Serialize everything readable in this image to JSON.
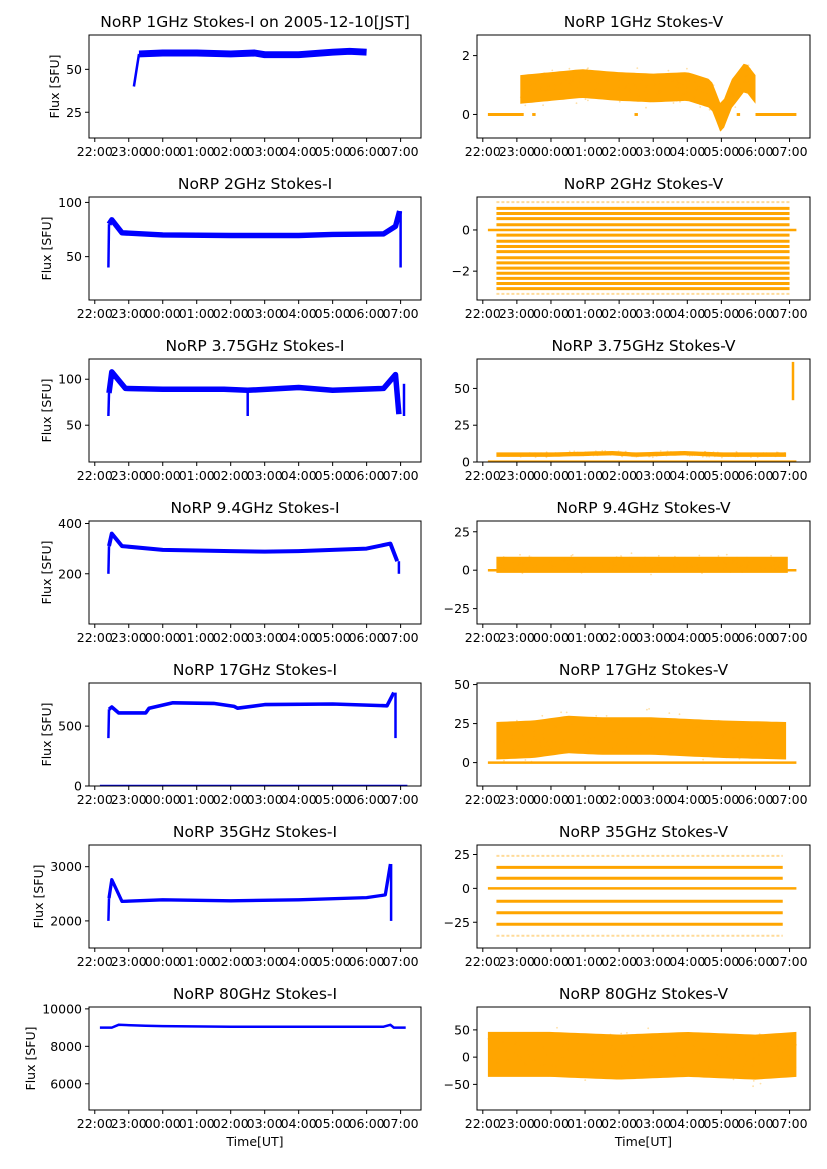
{
  "figure": {
    "time_ticks": [
      "22:00",
      "23:00",
      "00:00",
      "01:00",
      "02:00",
      "03:00",
      "04:00",
      "05:00",
      "06:00",
      "07:00"
    ],
    "x_range_hours": [
      21.83,
      31.6
    ],
    "xlabel": "Time[UT]",
    "ylabel": "Flux [SFU]",
    "colors": {
      "stokes_i": "#0000ff",
      "stokes_v": "#ffa500",
      "axes": "#000000"
    }
  },
  "chart_data": [
    {
      "type": "scatter",
      "title": "NoRP 1GHz Stokes-I on 2005-12-10[JST]",
      "ylabel": "Flux [SFU]",
      "xlabel": "",
      "ylim": [
        10,
        70
      ],
      "yticks": [
        25,
        50
      ],
      "ytick_labels": [
        "25",
        "50"
      ],
      "color": "#0000ff",
      "stokes": "I",
      "series": [
        {
          "name": "ramp",
          "x": [
            23.15,
            23.3
          ],
          "y": [
            40,
            59
          ]
        },
        {
          "name": "level",
          "x": [
            23.3,
            24.0,
            25.0,
            26.0,
            26.7,
            27.0,
            28.0,
            29.0,
            29.5,
            30.0
          ],
          "y": [
            59,
            59.5,
            59.5,
            59,
            59.5,
            58.5,
            58.5,
            60,
            60.5,
            60
          ],
          "spread": 2
        }
      ]
    },
    {
      "type": "scatter",
      "title": "NoRP 1GHz Stokes-V",
      "ylabel": "",
      "xlabel": "",
      "ylim": [
        -0.8,
        2.7
      ],
      "yticks": [
        0,
        2
      ],
      "ytick_labels": [
        "0",
        "2"
      ],
      "color": "#ffa500",
      "stokes": "V",
      "series": [
        {
          "name": "zero-level",
          "x": [
            22.15,
            23.2
          ],
          "y": [
            0,
            0
          ],
          "spread": 0.05
        },
        {
          "name": "zero-level",
          "x": [
            23.45,
            23.55
          ],
          "y": [
            0,
            0
          ],
          "spread": 0.05
        },
        {
          "name": "zero-level",
          "x": [
            26.45,
            26.55
          ],
          "y": [
            0,
            0
          ],
          "spread": 0.05
        },
        {
          "name": "zero-level",
          "x": [
            29.45,
            29.55
          ],
          "y": [
            0,
            0
          ],
          "spread": 0.05
        },
        {
          "name": "zero-level",
          "x": [
            30.0,
            31.2
          ],
          "y": [
            0,
            0
          ],
          "spread": 0.05
        },
        {
          "name": "noise",
          "x": [
            23.1,
            24.0,
            24.9,
            26.0,
            27.0,
            28.0,
            28.7,
            29.0,
            29.3,
            29.7,
            30.0
          ],
          "y": [
            0.85,
            0.95,
            1.05,
            0.95,
            0.9,
            0.95,
            0.7,
            -0.2,
            0.7,
            1.3,
            0.85
          ],
          "spread": 0.65
        }
      ]
    },
    {
      "type": "scatter",
      "title": "NoRP 2GHz Stokes-I",
      "ylabel": "Flux [SFU]",
      "xlabel": "",
      "ylim": [
        10,
        105
      ],
      "yticks": [
        50,
        100
      ],
      "ytick_labels": [
        "50",
        "100"
      ],
      "color": "#0000ff",
      "stokes": "I",
      "series": [
        {
          "name": "start",
          "x": [
            22.4,
            22.42
          ],
          "y": [
            40,
            80
          ]
        },
        {
          "name": "level",
          "x": [
            22.42,
            22.5,
            22.8,
            24.0,
            26.0,
            28.0,
            29.0,
            30.5,
            30.85,
            30.97
          ],
          "y": [
            80,
            84,
            72,
            70,
            69.5,
            69.5,
            70.5,
            71,
            78,
            92
          ],
          "spread": 2.5
        },
        {
          "name": "end-drop",
          "x": [
            31.0,
            31.0
          ],
          "y": [
            92,
            40
          ]
        }
      ]
    },
    {
      "type": "scatter",
      "title": "NoRP 2GHz Stokes-V",
      "ylabel": "",
      "xlabel": "",
      "ylim": [
        -3.4,
        1.6
      ],
      "yticks": [
        -2,
        0
      ],
      "ytick_labels": [
        "−2",
        "0"
      ],
      "color": "#ffa500",
      "stokes": "V",
      "series": [
        {
          "name": "zero-level",
          "x": [
            22.15,
            31.2
          ],
          "y": [
            0,
            0
          ],
          "spread": 0.05
        },
        {
          "name": "quantized-levels",
          "x": [
            22.4,
            31.0
          ],
          "levels": [
            1.35,
            1.05,
            0.8,
            0.55,
            0.25,
            -0.25,
            -0.55,
            -0.8,
            -1.05,
            -1.35,
            -1.6,
            -1.85,
            -2.1,
            -2.35,
            -2.6,
            -2.85,
            -3.1
          ]
        }
      ]
    },
    {
      "type": "scatter",
      "title": "NoRP 3.75GHz Stokes-I",
      "ylabel": "Flux [SFU]",
      "xlabel": "",
      "ylim": [
        10,
        122
      ],
      "yticks": [
        50,
        100
      ],
      "ytick_labels": [
        "50",
        "100"
      ],
      "color": "#0000ff",
      "stokes": "I",
      "series": [
        {
          "name": "start",
          "x": [
            22.4,
            22.42
          ],
          "y": [
            60,
            85
          ]
        },
        {
          "name": "level",
          "x": [
            22.42,
            22.5,
            22.9,
            24.0,
            25.8,
            26.5,
            28.0,
            29.0,
            30.5,
            30.85,
            30.95
          ],
          "y": [
            85,
            108,
            90,
            89,
            89,
            88,
            91,
            88,
            90,
            105,
            62
          ],
          "spread": 3
        },
        {
          "name": "dip",
          "x": [
            26.5,
            26.5
          ],
          "y": [
            88,
            60
          ]
        },
        {
          "name": "late-spike",
          "x": [
            31.1,
            31.1
          ],
          "y": [
            60,
            95
          ]
        }
      ]
    },
    {
      "type": "scatter",
      "title": "NoRP 3.75GHz Stokes-V",
      "ylabel": "",
      "xlabel": "",
      "ylim": [
        0,
        70
      ],
      "yticks": [
        0,
        25,
        50
      ],
      "ytick_labels": [
        "0",
        "25",
        "50"
      ],
      "color": "#ffa500",
      "stokes": "V",
      "series": [
        {
          "name": "zero-level",
          "x": [
            22.15,
            31.2
          ],
          "y": [
            0.3,
            0.3
          ],
          "spread": 0.3
        },
        {
          "name": "noise",
          "x": [
            22.4,
            24.0,
            25.8,
            26.5,
            27.9,
            29.0,
            30.9
          ],
          "y": [
            5,
            5,
            6,
            5,
            6,
            5,
            5
          ],
          "spread": 2
        },
        {
          "name": "late-spike",
          "x": [
            31.1,
            31.1
          ],
          "y": [
            42,
            68
          ]
        }
      ]
    },
    {
      "type": "scatter",
      "title": "NoRP 9.4GHz Stokes-I",
      "ylabel": "Flux [SFU]",
      "xlabel": "",
      "ylim": [
        0,
        410
      ],
      "yticks": [
        200,
        400
      ],
      "ytick_labels": [
        "200",
        "400"
      ],
      "color": "#0000ff",
      "stokes": "I",
      "series": [
        {
          "name": "start",
          "x": [
            22.4,
            22.42
          ],
          "y": [
            200,
            310
          ]
        },
        {
          "name": "level",
          "x": [
            22.42,
            22.5,
            22.8,
            24.0,
            26.0,
            27.0,
            28.0,
            30.0,
            30.7,
            30.9
          ],
          "y": [
            310,
            360,
            310,
            295,
            290,
            288,
            290,
            300,
            320,
            250
          ],
          "spread": 8
        },
        {
          "name": "end-drop",
          "x": [
            30.95,
            30.95
          ],
          "y": [
            250,
            200
          ]
        }
      ]
    },
    {
      "type": "scatter",
      "title": "NoRP 9.4GHz Stokes-V",
      "ylabel": "",
      "xlabel": "",
      "ylim": [
        -35,
        32
      ],
      "yticks": [
        -25,
        0,
        25
      ],
      "ytick_labels": [
        "−25",
        "0",
        "25"
      ],
      "color": "#ffa500",
      "stokes": "V",
      "series": [
        {
          "name": "zero-level",
          "x": [
            22.15,
            31.2
          ],
          "y": [
            0,
            0
          ],
          "spread": 0.4
        },
        {
          "name": "noise",
          "x": [
            22.4,
            26.0,
            30.95
          ],
          "y": [
            3.5,
            3.5,
            3.5
          ],
          "spread": 7
        }
      ]
    },
    {
      "type": "scatter",
      "title": "NoRP 17GHz Stokes-I",
      "ylabel": "Flux [SFU]",
      "xlabel": "",
      "ylim": [
        0,
        860
      ],
      "yticks": [
        0,
        500
      ],
      "ytick_labels": [
        "0",
        "500"
      ],
      "color": "#0000ff",
      "stokes": "I",
      "series": [
        {
          "name": "start",
          "x": [
            22.4,
            22.42
          ],
          "y": [
            400,
            640
          ]
        },
        {
          "name": "level",
          "x": [
            22.42,
            22.5,
            22.7,
            23.5,
            23.6,
            24.3,
            25.5,
            26.1,
            26.2,
            27.0,
            29.0,
            30.6,
            30.8
          ],
          "y": [
            640,
            660,
            610,
            610,
            650,
            695,
            690,
            665,
            650,
            680,
            685,
            670,
            780
          ],
          "spread": 15
        },
        {
          "name": "end-drop",
          "x": [
            30.85,
            30.85
          ],
          "y": [
            780,
            400
          ]
        },
        {
          "name": "zero-level",
          "x": [
            22.15,
            31.2
          ],
          "y": [
            0,
            0
          ],
          "spread": 2
        }
      ]
    },
    {
      "type": "scatter",
      "title": "NoRP 17GHz Stokes-V",
      "ylabel": "",
      "xlabel": "",
      "ylim": [
        -15,
        51
      ],
      "yticks": [
        0,
        25,
        50
      ],
      "ytick_labels": [
        "0",
        "25",
        "50"
      ],
      "color": "#ffa500",
      "stokes": "V",
      "series": [
        {
          "name": "zero-level",
          "x": [
            22.15,
            31.2
          ],
          "y": [
            0,
            0
          ],
          "spread": 0.5
        },
        {
          "name": "noise",
          "x": [
            22.4,
            23.5,
            24.5,
            25.5,
            27.0,
            28.0,
            29.0,
            30.9
          ],
          "y": [
            14,
            15,
            18,
            17,
            17,
            16,
            15,
            14
          ],
          "spread": 16
        }
      ]
    },
    {
      "type": "scatter",
      "title": "NoRP 35GHz Stokes-I",
      "ylabel": "Flux [SFU]",
      "xlabel": "",
      "ylim": [
        1500,
        3400
      ],
      "yticks": [
        2000,
        3000
      ],
      "ytick_labels": [
        "2000",
        "3000"
      ],
      "color": "#0000ff",
      "stokes": "I",
      "series": [
        {
          "name": "start",
          "x": [
            22.4,
            22.42
          ],
          "y": [
            2000,
            2420
          ]
        },
        {
          "name": "level",
          "x": [
            22.42,
            22.5,
            22.8,
            24.0,
            26.0,
            28.0,
            30.0,
            30.55,
            30.7
          ],
          "y": [
            2420,
            2760,
            2360,
            2390,
            2370,
            2390,
            2430,
            2480,
            3050
          ],
          "spread": 30
        },
        {
          "name": "end-drop",
          "x": [
            30.72,
            30.72
          ],
          "y": [
            3050,
            2000
          ]
        }
      ]
    },
    {
      "type": "scatter",
      "title": "NoRP 35GHz Stokes-V",
      "ylabel": "",
      "xlabel": "",
      "ylim": [
        -44,
        32
      ],
      "yticks": [
        -25,
        0,
        25
      ],
      "ytick_labels": [
        "−25",
        "0",
        "25"
      ],
      "color": "#ffa500",
      "stokes": "V",
      "series": [
        {
          "name": "zero-level",
          "x": [
            22.15,
            31.2
          ],
          "y": [
            0,
            0
          ],
          "spread": 0.8
        },
        {
          "name": "quantized-levels",
          "x": [
            22.4,
            30.8
          ],
          "levels": [
            24,
            15.5,
            7.5,
            -9.5,
            -18,
            -26.5,
            -35
          ]
        }
      ]
    },
    {
      "type": "scatter",
      "title": "NoRP 80GHz Stokes-I",
      "ylabel": "Flux [SFU]",
      "xlabel": "Time[UT]",
      "ylim": [
        4600,
        10100
      ],
      "yticks": [
        6000,
        8000,
        10000
      ],
      "ytick_labels": [
        "6000",
        "8000",
        "10000"
      ],
      "color": "#0000ff",
      "stokes": "I",
      "series": [
        {
          "name": "level",
          "x": [
            22.15,
            22.5,
            22.7,
            23.5,
            24.0,
            26.0,
            28.0,
            30.5,
            30.7,
            30.8,
            31.15
          ],
          "y": [
            9000,
            9000,
            9150,
            9100,
            9080,
            9050,
            9050,
            9050,
            9150,
            9000,
            9000
          ],
          "spread": 40
        }
      ]
    },
    {
      "type": "scatter",
      "title": "NoRP 80GHz Stokes-V",
      "ylabel": "",
      "xlabel": "Time[UT]",
      "ylim": [
        -97,
        92
      ],
      "yticks": [
        -50,
        0,
        50
      ],
      "ytick_labels": [
        "−50",
        "0",
        "50"
      ],
      "color": "#ffa500",
      "stokes": "V",
      "series": [
        {
          "name": "noise",
          "x": [
            22.15,
            24.0,
            26.0,
            28.0,
            30.0,
            31.2
          ],
          "y": [
            5,
            5,
            0,
            5,
            0,
            5
          ],
          "spread": 55
        }
      ]
    }
  ]
}
